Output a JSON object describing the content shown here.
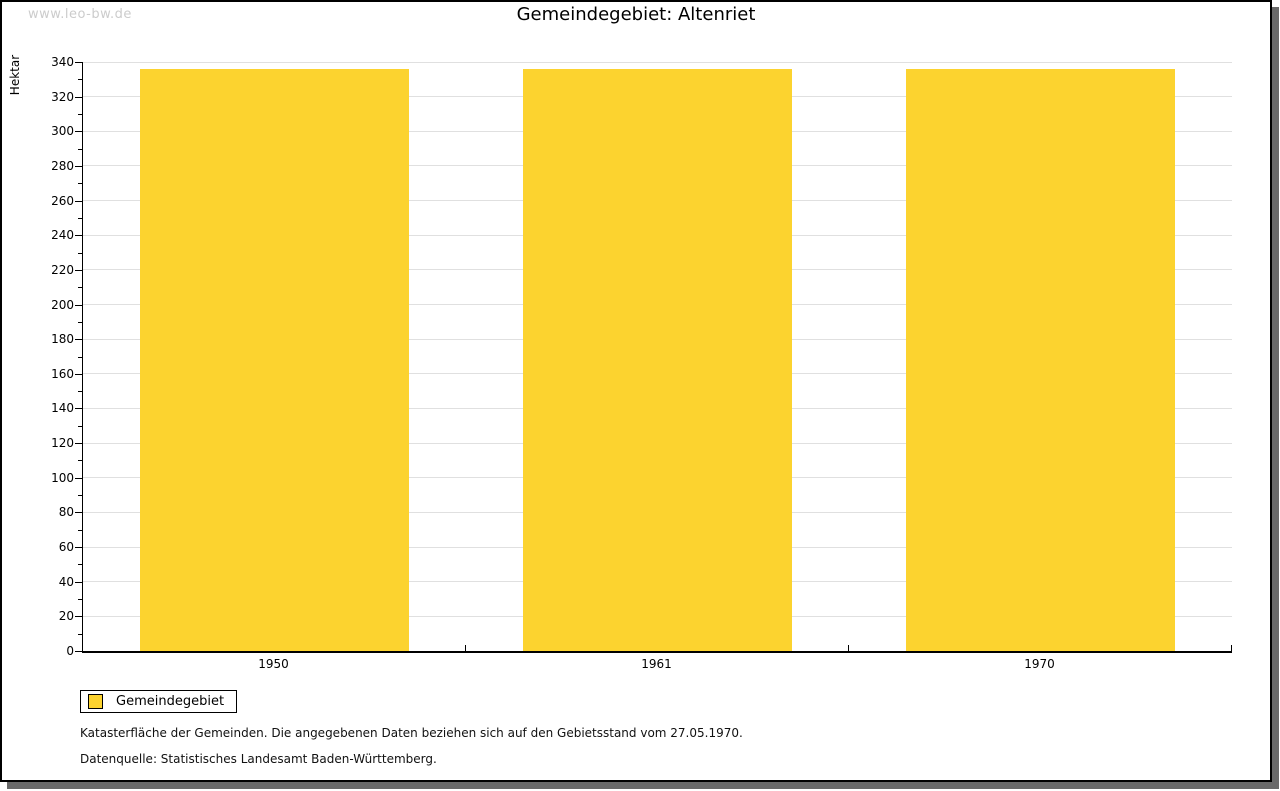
{
  "watermark": "www.leo-bw.de",
  "title": "Gemeindegebiet: Altenriet",
  "chart_data": {
    "type": "bar",
    "title": "Gemeindegebiet: Altenriet",
    "categories": [
      "1950",
      "1961",
      "1970"
    ],
    "series": [
      {
        "name": "Gemeindegebiet",
        "values": [
          336,
          336,
          336
        ]
      }
    ],
    "xlabel": "",
    "ylabel": "Hektar",
    "ylim": [
      0,
      340
    ],
    "ytick_step": 20,
    "yminor_step": 10,
    "bar_color": "#FCD32F",
    "grid": true,
    "grid_color": "#E0E0E0",
    "bar_width_fraction": 0.7,
    "legend_position": "bottom-left"
  },
  "legend": {
    "label": "Gemeindegebiet",
    "swatch_color": "#FCD32F"
  },
  "footer": {
    "line1": "Katasterfläche der Gemeinden. Die angegebenen Daten beziehen sich auf den Gebietsstand vom 27.05.1970.",
    "line2": "Datenquelle: Statistisches Landesamt Baden-Württemberg."
  }
}
